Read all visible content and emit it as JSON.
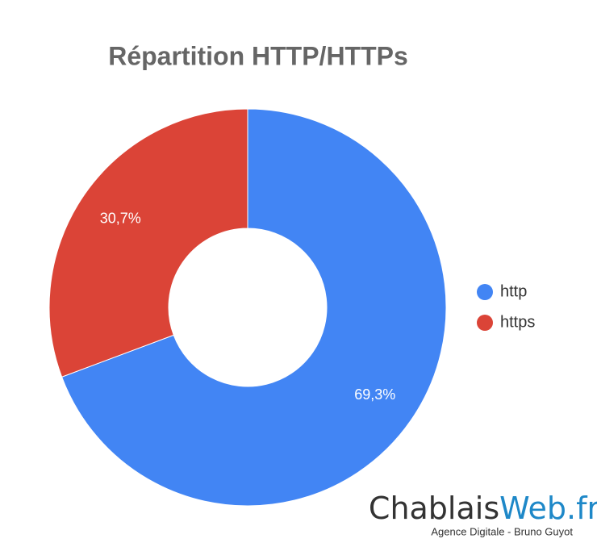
{
  "chart_data": {
    "type": "donut",
    "title": "Répartition HTTP/HTTPs",
    "categories": [
      "http",
      "https"
    ],
    "values": [
      69.3,
      30.7
    ],
    "value_labels": [
      "69,3%",
      "30,7%"
    ],
    "colors": [
      "#4285f4",
      "#db4437"
    ],
    "legend": "right"
  },
  "logo": {
    "brand_start": "Chablais",
    "brand_end": "Web.fr",
    "tagline": "Agence Digitale - Bruno Guyot"
  }
}
